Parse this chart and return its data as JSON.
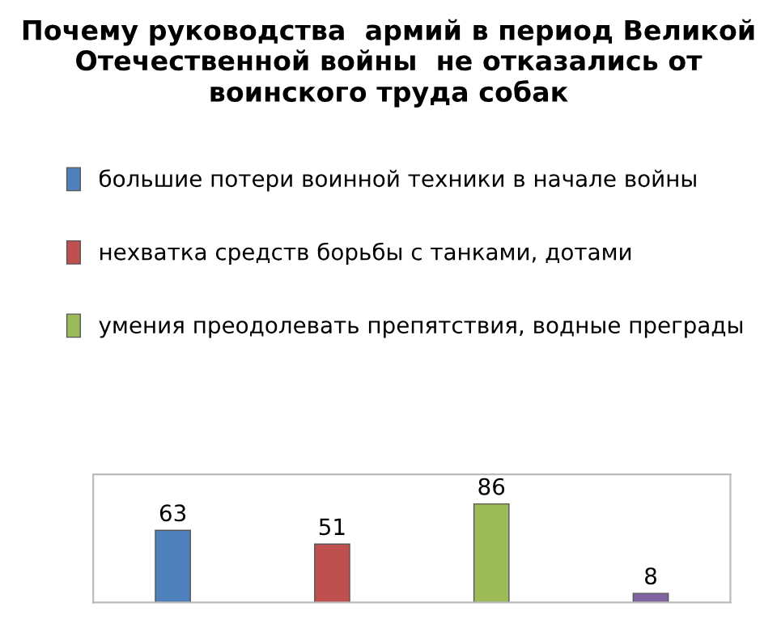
{
  "chart_data": {
    "type": "bar",
    "title": "Почему руководства  армий в период Великой Отечественной войны  не отказались от воинского труда собак",
    "categories": [
      null,
      null,
      null,
      null
    ],
    "series": [
      {
        "name": "большие потери воинной техники в начале войны",
        "color": "#4f81bd",
        "values": [
          63,
          null,
          null,
          null
        ]
      },
      {
        "name": "нехватка средств борьбы с танками, дотами",
        "color": "#c0504d",
        "values": [
          null,
          51,
          null,
          null
        ]
      },
      {
        "name": "умения преодолевать препятствия, водные преграды",
        "color": "#9bbb59",
        "values": [
          null,
          null,
          86,
          null
        ]
      },
      {
        "color": "#8064a2",
        "values": [
          null,
          null,
          null,
          8
        ]
      }
    ],
    "stacked": true,
    "data_labels": true,
    "legend": "top",
    "grid": false
  }
}
